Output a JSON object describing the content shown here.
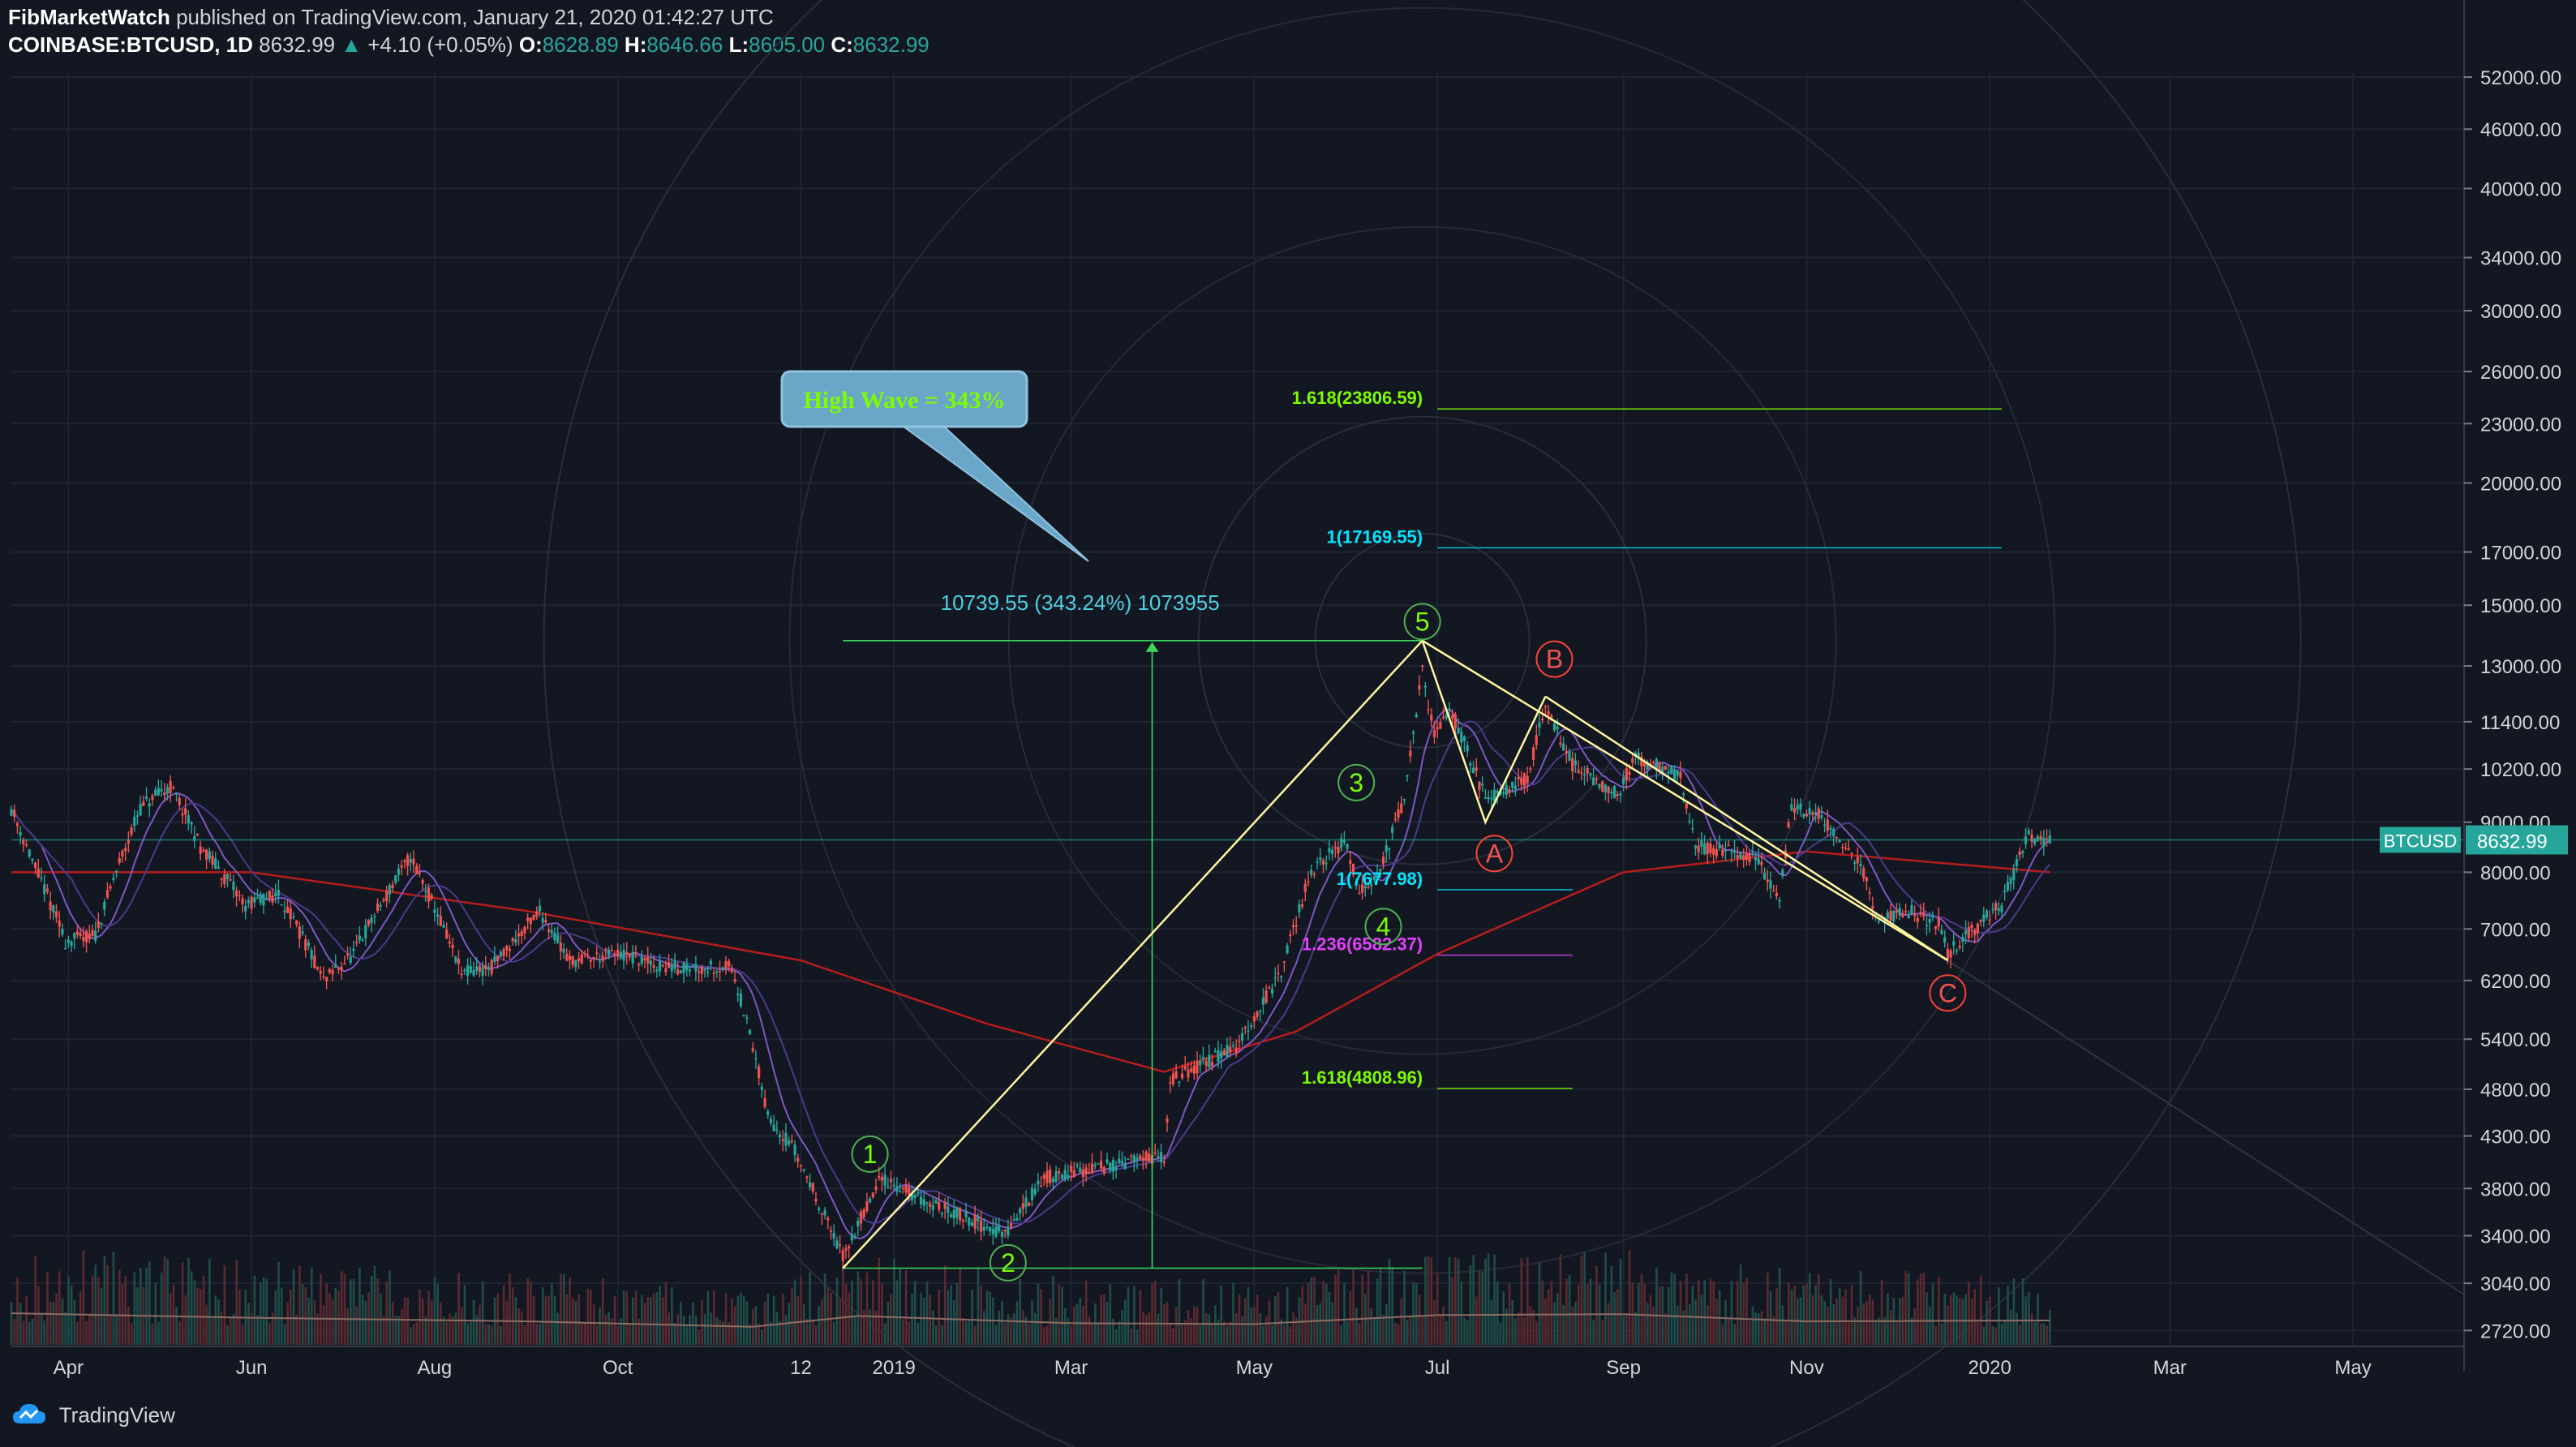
{
  "header": {
    "author": "FibMarketWatch",
    "published_text": "published on TradingView.com, January 21, 2020 01:42:27 UTC",
    "symbol": "COINBASE:BTCUSD, 1D",
    "price": "8632.99",
    "change": "+4.10 (+0.05%)",
    "o_label": "O:",
    "o_value": "8628.89",
    "h_label": "H:",
    "h_value": "8646.66",
    "l_label": "L:",
    "l_value": "8605.00",
    "c_label": "C:",
    "c_value": "8632.99"
  },
  "footer": {
    "brand": "TradingView"
  },
  "colors": {
    "background": "#131722",
    "grid": "#1f2433",
    "up": "#26a69a",
    "down": "#ef5350",
    "wave": "#fff59d",
    "fib_green": "#7cfc00",
    "fib_cyan": "#00e5ff",
    "fib_magenta": "#e040fb",
    "label_green": "#4caf50",
    "label_red": "#f44336",
    "ma_red": "#b71c1c",
    "ma_purple": "#7e57c2"
  },
  "chart_data": {
    "type": "candlestick",
    "scale": "log",
    "ylim": [
      2620,
      52500
    ],
    "x_range": [
      "2018-03-13",
      "2020-06-07"
    ],
    "price_ticks": [
      "52000.00",
      "46000.00",
      "40000.00",
      "34000.00",
      "30000.00",
      "26000.00",
      "23000.00",
      "20000.00",
      "17000.00",
      "15000.00",
      "13000.00",
      "11400.00",
      "10200.00",
      "9000.00",
      "8000.00",
      "7000.00",
      "6200.00",
      "5400.00",
      "4800.00",
      "4300.00",
      "3800.00",
      "3400.00",
      "3040.00",
      "2720.00"
    ],
    "time_ticks": [
      {
        "date": "2018-04-01",
        "label": "Apr"
      },
      {
        "date": "2018-06-01",
        "label": "Jun"
      },
      {
        "date": "2018-08-01",
        "label": "Aug"
      },
      {
        "date": "2018-10-01",
        "label": "Oct"
      },
      {
        "date": "2018-12-01",
        "label": "12"
      },
      {
        "date": "2019-01-01",
        "label": "2019"
      },
      {
        "date": "2019-03-01",
        "label": "Mar"
      },
      {
        "date": "2019-05-01",
        "label": "May"
      },
      {
        "date": "2019-07-01",
        "label": "Jul"
      },
      {
        "date": "2019-09-01",
        "label": "Sep"
      },
      {
        "date": "2019-11-01",
        "label": "Nov"
      },
      {
        "date": "2020-01-01",
        "label": "2020"
      },
      {
        "date": "2020-03-01",
        "label": "Mar"
      },
      {
        "date": "2020-05-01",
        "label": "May"
      }
    ],
    "price_path": [
      [
        "2018-03-13",
        9300
      ],
      [
        "2018-03-20",
        8200
      ],
      [
        "2018-03-31",
        6800
      ],
      [
        "2018-04-10",
        6900
      ],
      [
        "2018-04-25",
        9300
      ],
      [
        "2018-05-05",
        9800
      ],
      [
        "2018-05-15",
        8500
      ],
      [
        "2018-05-30",
        7400
      ],
      [
        "2018-06-10",
        7600
      ],
      [
        "2018-06-25",
        6200
      ],
      [
        "2018-07-05",
        6600
      ],
      [
        "2018-07-24",
        8300
      ],
      [
        "2018-08-10",
        6300
      ],
      [
        "2018-08-20",
        6400
      ],
      [
        "2018-09-05",
        7300
      ],
      [
        "2018-09-15",
        6500
      ],
      [
        "2018-10-01",
        6600
      ],
      [
        "2018-10-15",
        6400
      ],
      [
        "2018-11-08",
        6400
      ],
      [
        "2018-11-20",
        4500
      ],
      [
        "2018-11-28",
        4200
      ],
      [
        "2018-12-10",
        3500
      ],
      [
        "2018-12-15",
        3230
      ],
      [
        "2018-12-28",
        3900
      ],
      [
        "2019-01-10",
        3700
      ],
      [
        "2019-01-25",
        3550
      ],
      [
        "2019-02-07",
        3400
      ],
      [
        "2019-02-20",
        3900
      ],
      [
        "2019-03-20",
        4050
      ],
      [
        "2019-04-01",
        4100
      ],
      [
        "2019-04-03",
        4900
      ],
      [
        "2019-04-25",
        5300
      ],
      [
        "2019-05-10",
        6300
      ],
      [
        "2019-05-20",
        8000
      ],
      [
        "2019-05-31",
        8600
      ],
      [
        "2019-06-05",
        7700
      ],
      [
        "2019-06-12",
        8000
      ],
      [
        "2019-06-20",
        9500
      ],
      [
        "2019-06-26",
        12800
      ],
      [
        "2019-06-30",
        11000
      ],
      [
        "2019-07-05",
        11800
      ],
      [
        "2019-07-17",
        9500
      ],
      [
        "2019-07-31",
        10000
      ],
      [
        "2019-08-06",
        11800
      ],
      [
        "2019-08-15",
        10300
      ],
      [
        "2019-08-30",
        9600
      ],
      [
        "2019-09-05",
        10500
      ],
      [
        "2019-09-20",
        10000
      ],
      [
        "2019-09-25",
        8500
      ],
      [
        "2019-10-15",
        8300
      ],
      [
        "2019-10-23",
        7500
      ],
      [
        "2019-10-27",
        9300
      ],
      [
        "2019-11-05",
        9200
      ],
      [
        "2019-11-20",
        8000
      ],
      [
        "2019-11-25",
        7100
      ],
      [
        "2019-12-05",
        7300
      ],
      [
        "2019-12-15",
        7100
      ],
      [
        "2019-12-18",
        6600
      ],
      [
        "2019-12-31",
        7200
      ],
      [
        "2020-01-05",
        7400
      ],
      [
        "2020-01-14",
        8700
      ],
      [
        "2020-01-21",
        8633
      ]
    ],
    "ma_long": [
      [
        "2018-03-13",
        8000
      ],
      [
        "2018-06-01",
        8000
      ],
      [
        "2018-09-01",
        7300
      ],
      [
        "2018-12-01",
        6500
      ],
      [
        "2019-02-01",
        5600
      ],
      [
        "2019-04-01",
        5000
      ],
      [
        "2019-05-15",
        5500
      ],
      [
        "2019-07-01",
        6600
      ],
      [
        "2019-09-01",
        8000
      ],
      [
        "2019-11-01",
        8400
      ],
      [
        "2020-01-21",
        8000
      ]
    ],
    "volume_profile": [
      [
        "2018-03-13",
        3500
      ],
      [
        "2018-06-01",
        3000
      ],
      [
        "2018-09-01",
        2600
      ],
      [
        "2018-11-15",
        2000
      ],
      [
        "2018-12-20",
        3200
      ],
      [
        "2019-03-01",
        2400
      ],
      [
        "2019-05-01",
        2300
      ],
      [
        "2019-07-01",
        3300
      ],
      [
        "2019-09-01",
        3400
      ],
      [
        "2019-11-01",
        2600
      ],
      [
        "2020-01-21",
        2700
      ]
    ],
    "current_price_label": "BTCUSD",
    "current_price": 8632.99,
    "waves": {
      "impulse": [
        [
          "2018-12-15",
          3150
        ],
        [
          "2019-06-26",
          13800
        ]
      ],
      "corrective": [
        [
          "2019-06-26",
          13800
        ],
        [
          "2019-07-17",
          9000
        ],
        [
          "2019-08-06",
          12100
        ],
        [
          "2019-12-18",
          6500
        ]
      ],
      "impulse_links": [
        [
          "2019-06-26",
          13800
        ],
        [
          "2019-07-17",
          9000
        ],
        [
          "2019-08-06",
          12100
        ]
      ]
    },
    "wave_labels": [
      {
        "text": "1",
        "date": "2018-12-24",
        "price": 4120,
        "color": "green"
      },
      {
        "text": "2",
        "date": "2019-02-08",
        "price": 3190,
        "color": "green"
      },
      {
        "text": "3",
        "date": "2019-06-04",
        "price": 9880,
        "color": "green"
      },
      {
        "text": "4",
        "date": "2019-06-13",
        "price": 7040,
        "color": "green"
      },
      {
        "text": "5",
        "date": "2019-06-26",
        "price": 14430,
        "color": "green"
      },
      {
        "text": "A",
        "date": "2019-07-20",
        "price": 8360,
        "color": "red"
      },
      {
        "text": "B",
        "date": "2019-08-09",
        "price": 13210,
        "color": "red"
      },
      {
        "text": "C",
        "date": "2019-12-18",
        "price": 6020,
        "color": "red"
      }
    ],
    "fib_levels": [
      {
        "text": "1.618(23806.59)",
        "price": 23806.59,
        "start": "2019-07-01",
        "end": "2020-01-05",
        "color": "fib_green"
      },
      {
        "text": "1(17169.55)",
        "price": 17169.55,
        "start": "2019-07-01",
        "end": "2020-01-05",
        "color": "fib_cyan"
      },
      {
        "text": "1(7677.98)",
        "price": 7677.98,
        "start": "2019-07-01",
        "end": "2019-08-15",
        "color": "fib_cyan"
      },
      {
        "text": "1.236(6582.37)",
        "price": 6582.37,
        "start": "2019-07-01",
        "end": "2019-08-15",
        "color": "fib_magenta"
      },
      {
        "text": "1.618(4808.96)",
        "price": 4808.96,
        "start": "2019-07-01",
        "end": "2019-08-15",
        "color": "fib_green"
      }
    ],
    "measure": {
      "text": "10739.55 (343.24%) 1073955",
      "start": "2018-12-15",
      "end": "2019-06-26",
      "low": 3150,
      "high": 13800,
      "mid_date": "2019-03-28"
    },
    "callout": {
      "text": "High Wave = 343%",
      "color": "#7cfc00"
    }
  }
}
